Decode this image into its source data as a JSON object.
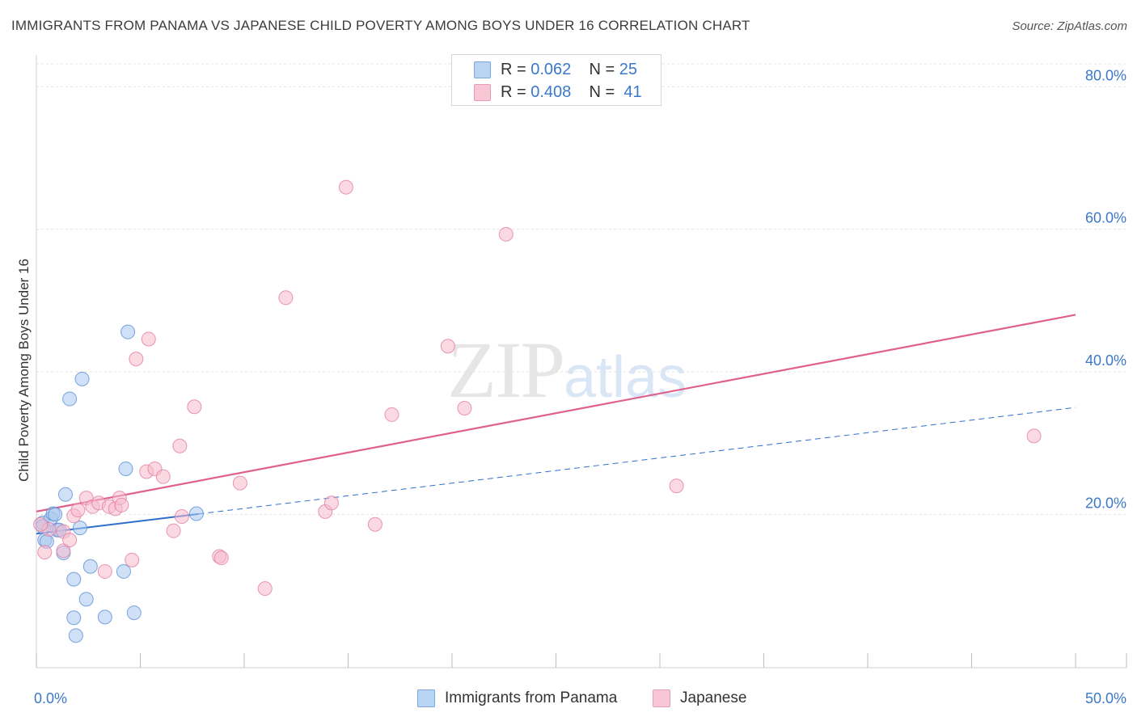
{
  "header": {
    "title": "IMMIGRANTS FROM PANAMA VS JAPANESE CHILD POVERTY AMONG BOYS UNDER 16 CORRELATION CHART",
    "source": "Source: ZipAtlas.com"
  },
  "watermark": {
    "zip": "ZIP",
    "atlas": "atlas"
  },
  "legend": {
    "rows": [
      {
        "r_label": "R =",
        "r_value": "0.062",
        "n_label": "N =",
        "n_value": "25"
      },
      {
        "r_label": "R =",
        "r_value": "0.408",
        "n_label": "N =",
        "n_value": "41"
      }
    ]
  },
  "chart_data": {
    "type": "scatter",
    "title": "IMMIGRANTS FROM PANAMA VS JAPANESE CHILD POVERTY AMONG BOYS UNDER 16 CORRELATION CHART",
    "xlabel": "",
    "ylabel": "Child Poverty Among Boys Under 16",
    "xlim": [
      0,
      50
    ],
    "ylim": [
      -1.5,
      84
    ],
    "x_ticks_labeled": [
      {
        "value": 0,
        "label": "0.0%"
      },
      {
        "value": 50,
        "label": "50.0%"
      }
    ],
    "y_ticks": [
      {
        "value": 20,
        "label": "20.0%"
      },
      {
        "value": 40,
        "label": "40.0%"
      },
      {
        "value": 60,
        "label": "60.0%"
      },
      {
        "value": 80,
        "label": "80.0%"
      }
    ],
    "x_minor_ticks": [
      0,
      5,
      10,
      15,
      20,
      25,
      30,
      35,
      40,
      45,
      50
    ],
    "grid": true,
    "colors": {
      "panama_fill": "#a9c8f0",
      "panama_stroke": "#5b8fd6",
      "panama_line": "#2f6fcc",
      "japanese_fill": "#f6b9cc",
      "japanese_stroke": "#e27ea0",
      "japanese_line": "#e0608c",
      "axis_label": "#3a78c9"
    },
    "series": [
      {
        "name": "Immigrants from Panama",
        "r": 0.062,
        "n": 25,
        "trend": {
          "x0": 0,
          "y0": 17.3,
          "x1": 50,
          "y1": 35.0,
          "solid_until_x": 7.8
        },
        "points": [
          [
            0.3,
            18.8
          ],
          [
            0.4,
            16.4
          ],
          [
            0.5,
            16.2
          ],
          [
            0.7,
            19.4
          ],
          [
            0.8,
            20.1
          ],
          [
            0.9,
            20.0
          ],
          [
            1.0,
            17.8
          ],
          [
            1.1,
            17.8
          ],
          [
            1.3,
            14.6
          ],
          [
            1.4,
            22.8
          ],
          [
            1.6,
            36.2
          ],
          [
            1.8,
            10.9
          ],
          [
            1.8,
            5.5
          ],
          [
            1.9,
            3.0
          ],
          [
            2.1,
            18.1
          ],
          [
            2.2,
            39.0
          ],
          [
            2.4,
            8.1
          ],
          [
            2.6,
            12.7
          ],
          [
            3.3,
            5.6
          ],
          [
            4.2,
            12.0
          ],
          [
            4.3,
            26.4
          ],
          [
            4.4,
            45.6
          ],
          [
            4.7,
            6.2
          ],
          [
            7.7,
            20.1
          ],
          [
            0.3,
            18.3
          ]
        ]
      },
      {
        "name": "Japanese",
        "r": 0.408,
        "n": 41,
        "trend": {
          "x0": 0,
          "y0": 20.4,
          "x1": 50,
          "y1": 48.0
        },
        "points": [
          [
            0.4,
            14.7
          ],
          [
            0.6,
            17.9
          ],
          [
            1.3,
            14.9
          ],
          [
            1.3,
            17.6
          ],
          [
            1.6,
            16.4
          ],
          [
            1.8,
            19.8
          ],
          [
            2.0,
            20.6
          ],
          [
            2.4,
            22.3
          ],
          [
            2.7,
            21.1
          ],
          [
            3.0,
            21.6
          ],
          [
            3.3,
            12.0
          ],
          [
            3.5,
            21.1
          ],
          [
            3.8,
            20.8
          ],
          [
            4.0,
            22.3
          ],
          [
            4.1,
            21.3
          ],
          [
            4.6,
            13.6
          ],
          [
            4.8,
            41.8
          ],
          [
            5.3,
            26.0
          ],
          [
            5.4,
            44.6
          ],
          [
            5.7,
            26.4
          ],
          [
            6.1,
            25.3
          ],
          [
            6.6,
            17.7
          ],
          [
            6.9,
            29.6
          ],
          [
            7.0,
            19.7
          ],
          [
            7.6,
            35.1
          ],
          [
            8.8,
            14.1
          ],
          [
            8.9,
            13.9
          ],
          [
            9.8,
            24.4
          ],
          [
            11.0,
            9.6
          ],
          [
            12.0,
            50.4
          ],
          [
            13.9,
            20.4
          ],
          [
            14.2,
            21.6
          ],
          [
            14.9,
            65.9
          ],
          [
            16.3,
            18.6
          ],
          [
            17.1,
            34.0
          ],
          [
            19.8,
            43.6
          ],
          [
            20.6,
            34.9
          ],
          [
            22.6,
            59.3
          ],
          [
            30.8,
            24.0
          ],
          [
            48.0,
            31.0
          ],
          [
            0.2,
            18.6
          ]
        ]
      }
    ]
  },
  "bottom_legend": {
    "items": [
      {
        "label": "Immigrants from Panama"
      },
      {
        "label": "Japanese"
      }
    ]
  }
}
